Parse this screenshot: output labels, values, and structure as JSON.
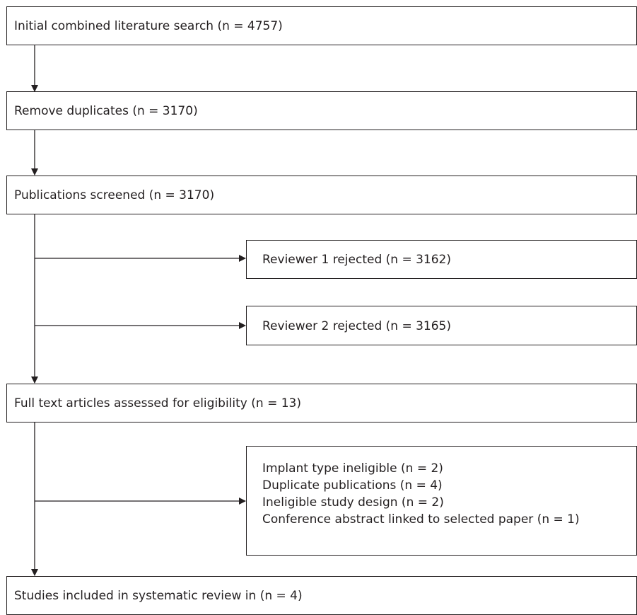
{
  "boxes": {
    "initial_search": "Initial combined literature search (n = 4757)",
    "remove_duplicates": "Remove duplicates (n = 3170)",
    "screened": "Publications screened (n = 3170)",
    "reviewer1_rejected": "Reviewer 1 rejected (n = 3162)",
    "reviewer2_rejected": "Reviewer 2 rejected (n = 3165)",
    "full_text": "Full text articles assessed for eligibility (n = 13)",
    "exclusions": [
      "Implant type ineligible (n = 2)",
      "Duplicate publications (n = 4)",
      "Ineligible study design (n = 2)",
      "Conference abstract linked to selected paper (n = 1)"
    ],
    "included": "Studies included in systematic review in (n = 4)"
  }
}
